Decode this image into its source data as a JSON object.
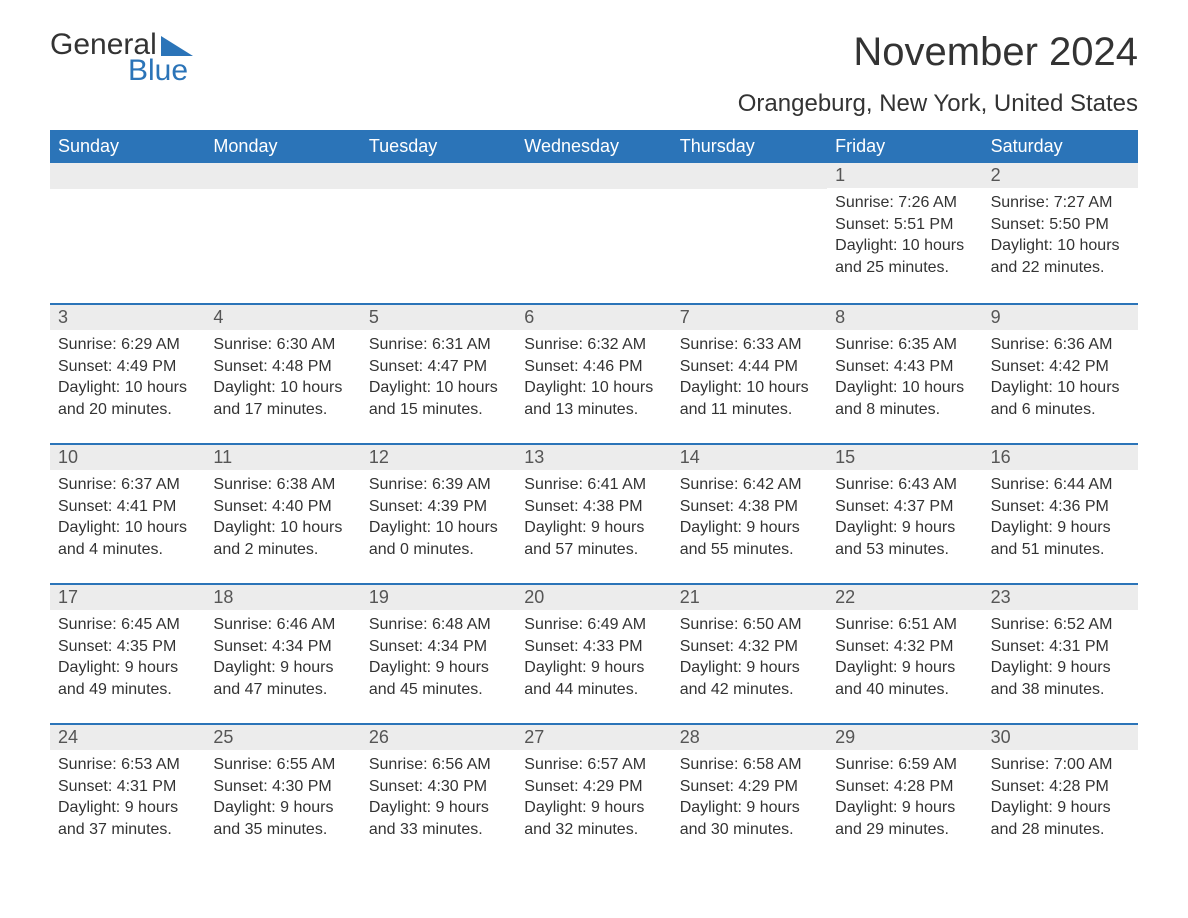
{
  "brand": {
    "word1": "General",
    "word2": "Blue",
    "accent_color": "#2b74b8"
  },
  "title": "November 2024",
  "subtitle": "Orangeburg, New York, United States",
  "colors": {
    "header_bg": "#2b74b8",
    "header_text": "#ffffff",
    "daynum_bg": "#ececec",
    "body_text": "#333333",
    "page_bg": "#ffffff",
    "week_divider": "#2b74b8"
  },
  "days_of_week": [
    "Sunday",
    "Monday",
    "Tuesday",
    "Wednesday",
    "Thursday",
    "Friday",
    "Saturday"
  ],
  "weeks": [
    [
      {
        "n": "",
        "sunrise": "",
        "sunset": "",
        "daylight": ""
      },
      {
        "n": "",
        "sunrise": "",
        "sunset": "",
        "daylight": ""
      },
      {
        "n": "",
        "sunrise": "",
        "sunset": "",
        "daylight": ""
      },
      {
        "n": "",
        "sunrise": "",
        "sunset": "",
        "daylight": ""
      },
      {
        "n": "",
        "sunrise": "",
        "sunset": "",
        "daylight": ""
      },
      {
        "n": "1",
        "sunrise": "Sunrise: 7:26 AM",
        "sunset": "Sunset: 5:51 PM",
        "daylight": "Daylight: 10 hours and 25 minutes."
      },
      {
        "n": "2",
        "sunrise": "Sunrise: 7:27 AM",
        "sunset": "Sunset: 5:50 PM",
        "daylight": "Daylight: 10 hours and 22 minutes."
      }
    ],
    [
      {
        "n": "3",
        "sunrise": "Sunrise: 6:29 AM",
        "sunset": "Sunset: 4:49 PM",
        "daylight": "Daylight: 10 hours and 20 minutes."
      },
      {
        "n": "4",
        "sunrise": "Sunrise: 6:30 AM",
        "sunset": "Sunset: 4:48 PM",
        "daylight": "Daylight: 10 hours and 17 minutes."
      },
      {
        "n": "5",
        "sunrise": "Sunrise: 6:31 AM",
        "sunset": "Sunset: 4:47 PM",
        "daylight": "Daylight: 10 hours and 15 minutes."
      },
      {
        "n": "6",
        "sunrise": "Sunrise: 6:32 AM",
        "sunset": "Sunset: 4:46 PM",
        "daylight": "Daylight: 10 hours and 13 minutes."
      },
      {
        "n": "7",
        "sunrise": "Sunrise: 6:33 AM",
        "sunset": "Sunset: 4:44 PM",
        "daylight": "Daylight: 10 hours and 11 minutes."
      },
      {
        "n": "8",
        "sunrise": "Sunrise: 6:35 AM",
        "sunset": "Sunset: 4:43 PM",
        "daylight": "Daylight: 10 hours and 8 minutes."
      },
      {
        "n": "9",
        "sunrise": "Sunrise: 6:36 AM",
        "sunset": "Sunset: 4:42 PM",
        "daylight": "Daylight: 10 hours and 6 minutes."
      }
    ],
    [
      {
        "n": "10",
        "sunrise": "Sunrise: 6:37 AM",
        "sunset": "Sunset: 4:41 PM",
        "daylight": "Daylight: 10 hours and 4 minutes."
      },
      {
        "n": "11",
        "sunrise": "Sunrise: 6:38 AM",
        "sunset": "Sunset: 4:40 PM",
        "daylight": "Daylight: 10 hours and 2 minutes."
      },
      {
        "n": "12",
        "sunrise": "Sunrise: 6:39 AM",
        "sunset": "Sunset: 4:39 PM",
        "daylight": "Daylight: 10 hours and 0 minutes."
      },
      {
        "n": "13",
        "sunrise": "Sunrise: 6:41 AM",
        "sunset": "Sunset: 4:38 PM",
        "daylight": "Daylight: 9 hours and 57 minutes."
      },
      {
        "n": "14",
        "sunrise": "Sunrise: 6:42 AM",
        "sunset": "Sunset: 4:38 PM",
        "daylight": "Daylight: 9 hours and 55 minutes."
      },
      {
        "n": "15",
        "sunrise": "Sunrise: 6:43 AM",
        "sunset": "Sunset: 4:37 PM",
        "daylight": "Daylight: 9 hours and 53 minutes."
      },
      {
        "n": "16",
        "sunrise": "Sunrise: 6:44 AM",
        "sunset": "Sunset: 4:36 PM",
        "daylight": "Daylight: 9 hours and 51 minutes."
      }
    ],
    [
      {
        "n": "17",
        "sunrise": "Sunrise: 6:45 AM",
        "sunset": "Sunset: 4:35 PM",
        "daylight": "Daylight: 9 hours and 49 minutes."
      },
      {
        "n": "18",
        "sunrise": "Sunrise: 6:46 AM",
        "sunset": "Sunset: 4:34 PM",
        "daylight": "Daylight: 9 hours and 47 minutes."
      },
      {
        "n": "19",
        "sunrise": "Sunrise: 6:48 AM",
        "sunset": "Sunset: 4:34 PM",
        "daylight": "Daylight: 9 hours and 45 minutes."
      },
      {
        "n": "20",
        "sunrise": "Sunrise: 6:49 AM",
        "sunset": "Sunset: 4:33 PM",
        "daylight": "Daylight: 9 hours and 44 minutes."
      },
      {
        "n": "21",
        "sunrise": "Sunrise: 6:50 AM",
        "sunset": "Sunset: 4:32 PM",
        "daylight": "Daylight: 9 hours and 42 minutes."
      },
      {
        "n": "22",
        "sunrise": "Sunrise: 6:51 AM",
        "sunset": "Sunset: 4:32 PM",
        "daylight": "Daylight: 9 hours and 40 minutes."
      },
      {
        "n": "23",
        "sunrise": "Sunrise: 6:52 AM",
        "sunset": "Sunset: 4:31 PM",
        "daylight": "Daylight: 9 hours and 38 minutes."
      }
    ],
    [
      {
        "n": "24",
        "sunrise": "Sunrise: 6:53 AM",
        "sunset": "Sunset: 4:31 PM",
        "daylight": "Daylight: 9 hours and 37 minutes."
      },
      {
        "n": "25",
        "sunrise": "Sunrise: 6:55 AM",
        "sunset": "Sunset: 4:30 PM",
        "daylight": "Daylight: 9 hours and 35 minutes."
      },
      {
        "n": "26",
        "sunrise": "Sunrise: 6:56 AM",
        "sunset": "Sunset: 4:30 PM",
        "daylight": "Daylight: 9 hours and 33 minutes."
      },
      {
        "n": "27",
        "sunrise": "Sunrise: 6:57 AM",
        "sunset": "Sunset: 4:29 PM",
        "daylight": "Daylight: 9 hours and 32 minutes."
      },
      {
        "n": "28",
        "sunrise": "Sunrise: 6:58 AM",
        "sunset": "Sunset: 4:29 PM",
        "daylight": "Daylight: 9 hours and 30 minutes."
      },
      {
        "n": "29",
        "sunrise": "Sunrise: 6:59 AM",
        "sunset": "Sunset: 4:28 PM",
        "daylight": "Daylight: 9 hours and 29 minutes."
      },
      {
        "n": "30",
        "sunrise": "Sunrise: 7:00 AM",
        "sunset": "Sunset: 4:28 PM",
        "daylight": "Daylight: 9 hours and 28 minutes."
      }
    ]
  ]
}
